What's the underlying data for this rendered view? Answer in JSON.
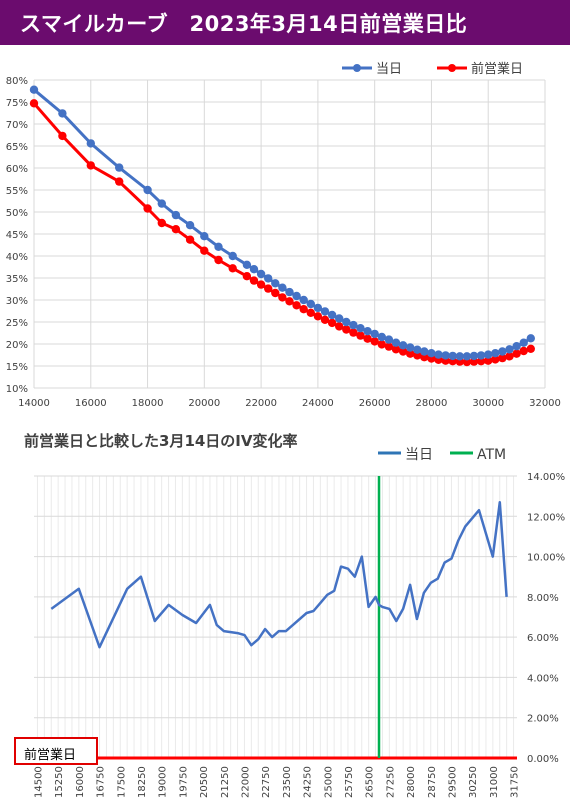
{
  "header": {
    "title": "スマイルカーブ　2023年3月14日前営業日比"
  },
  "colors": {
    "current": "#4472c4",
    "previous": "#ff0000",
    "atm": "#00b050",
    "banner": "#6b0c6e"
  },
  "legend2_prev_label": "前営業日",
  "chart_data": [
    {
      "type": "line",
      "title": "",
      "xlim": [
        14000,
        32000
      ],
      "ylim": [
        10,
        80
      ],
      "x_ticks": [
        14000,
        16000,
        18000,
        20000,
        22000,
        24000,
        26000,
        28000,
        30000,
        32000
      ],
      "y_ticks": [
        "10%",
        "15%",
        "20%",
        "25%",
        "30%",
        "35%",
        "40%",
        "45%",
        "50%",
        "55%",
        "60%",
        "65%",
        "70%",
        "75%",
        "80%"
      ],
      "legend_position": "top-right",
      "series": [
        {
          "name": "当日",
          "x": [
            14000,
            15000,
            16000,
            17000,
            18000,
            18500,
            19000,
            19500,
            20000,
            20500,
            21000,
            21500,
            21750,
            22000,
            22250,
            22500,
            22750,
            23000,
            23250,
            23500,
            23750,
            24000,
            24250,
            24500,
            24750,
            25000,
            25250,
            25500,
            25750,
            26000,
            26250,
            26500,
            26750,
            27000,
            27250,
            27500,
            27750,
            28000,
            28250,
            28500,
            28750,
            29000,
            29250,
            29500,
            29750,
            30000,
            30250,
            30500,
            30750,
            31000,
            31250,
            31500
          ],
          "values": [
            77.8,
            72.4,
            65.6,
            60.1,
            55.0,
            51.9,
            49.3,
            47.0,
            44.5,
            42.1,
            40.0,
            38.0,
            37.0,
            35.9,
            34.9,
            33.8,
            32.8,
            31.8,
            30.9,
            30.0,
            29.1,
            28.2,
            27.4,
            26.6,
            25.8,
            25.0,
            24.3,
            23.6,
            22.9,
            22.3,
            21.6,
            21.0,
            20.3,
            19.7,
            19.2,
            18.7,
            18.3,
            17.9,
            17.6,
            17.4,
            17.3,
            17.2,
            17.2,
            17.3,
            17.4,
            17.6,
            17.9,
            18.3,
            18.8,
            19.5,
            20.3,
            21.3
          ]
        },
        {
          "name": "前営業日",
          "x": [
            14000,
            15000,
            16000,
            17000,
            18000,
            18500,
            19000,
            19500,
            20000,
            20500,
            21000,
            21500,
            21750,
            22000,
            22250,
            22500,
            22750,
            23000,
            23250,
            23500,
            23750,
            24000,
            24250,
            24500,
            24750,
            25000,
            25250,
            25500,
            25750,
            26000,
            26250,
            26500,
            26750,
            27000,
            27250,
            27500,
            27750,
            28000,
            28250,
            28500,
            28750,
            29000,
            29250,
            29500,
            29750,
            30000,
            30250,
            30500,
            30750,
            31000,
            31250,
            31500
          ],
          "values": [
            74.7,
            67.3,
            60.6,
            56.9,
            50.8,
            47.5,
            46.1,
            43.7,
            41.2,
            39.1,
            37.2,
            35.4,
            34.4,
            33.5,
            32.6,
            31.6,
            30.6,
            29.7,
            28.8,
            27.9,
            27.1,
            26.3,
            25.5,
            24.8,
            24.0,
            23.3,
            22.6,
            21.9,
            21.2,
            20.6,
            19.9,
            19.4,
            18.8,
            18.3,
            17.8,
            17.4,
            17.0,
            16.7,
            16.4,
            16.2,
            16.1,
            16.0,
            15.9,
            16.0,
            16.1,
            16.2,
            16.5,
            16.8,
            17.2,
            17.8,
            18.4,
            18.9
          ]
        }
      ]
    },
    {
      "type": "line",
      "title": "前営業日と比較した3月14日のIV変化率",
      "ylim": [
        0,
        14
      ],
      "y_ticks": [
        "0.00%",
        "2.00%",
        "4.00%",
        "6.00%",
        "8.00%",
        "10.00%",
        "12.00%",
        "14.00%"
      ],
      "legend_position": "top-right",
      "atm_label": "ATM",
      "atm_strike": 26875,
      "x_labels": [
        "14500",
        "15250",
        "16000",
        "16750",
        "17500",
        "18250",
        "19000",
        "19750",
        "20500",
        "21250",
        "22000",
        "22750",
        "23500",
        "24250",
        "25000",
        "25750",
        "26500",
        "27250",
        "28000",
        "28750",
        "29500",
        "30250",
        "31000",
        "31750"
      ],
      "series": [
        {
          "name": "当日",
          "x": [
            15000,
            16000,
            16750,
            17750,
            18250,
            18750,
            19250,
            19750,
            20250,
            20750,
            21000,
            21250,
            21750,
            22000,
            22250,
            22500,
            22750,
            23000,
            23250,
            23500,
            23750,
            24250,
            24500,
            24750,
            25000,
            25250,
            25500,
            25750,
            26000,
            26250,
            26500,
            26750,
            26875,
            27000,
            27250,
            27500,
            27750,
            28000,
            28250,
            28500,
            28750,
            29000,
            29250,
            29500,
            29750,
            30000,
            30500,
            31000,
            31250,
            31500
          ],
          "values": [
            7.4,
            8.4,
            5.5,
            8.4,
            9.0,
            6.8,
            7.6,
            7.1,
            6.7,
            7.6,
            6.6,
            6.3,
            6.2,
            6.1,
            5.6,
            5.9,
            6.4,
            6.0,
            6.3,
            6.3,
            6.6,
            7.2,
            7.3,
            7.7,
            8.1,
            8.3,
            9.5,
            9.4,
            9.0,
            10.0,
            7.5,
            8.0,
            7.6,
            7.5,
            7.4,
            6.8,
            7.4,
            8.6,
            6.9,
            8.2,
            8.7,
            8.9,
            9.7,
            9.9,
            10.8,
            11.5,
            12.3,
            10.0,
            12.7,
            8.0
          ]
        },
        {
          "name": "前営業日",
          "x": [
            14500,
            31750
          ],
          "values": [
            0,
            0
          ]
        }
      ]
    }
  ]
}
